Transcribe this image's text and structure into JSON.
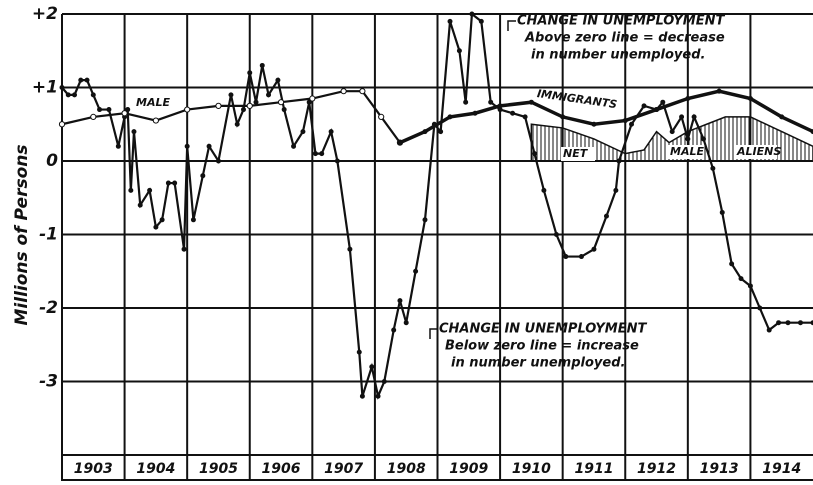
{
  "chart_data": {
    "type": "line",
    "y_label": "Millions of Persons",
    "categories": [
      "1903",
      "1904",
      "1905",
      "1906",
      "1907",
      "1908",
      "1909",
      "1910",
      "1911",
      "1912",
      "1913",
      "1914"
    ],
    "xlim": [
      1903,
      1915
    ],
    "ylim": [
      -4,
      2
    ],
    "yticks": [
      {
        "value": 2,
        "label": "+2"
      },
      {
        "value": 1,
        "label": "+1"
      },
      0,
      -1,
      -2,
      -3
    ],
    "grid": true,
    "series": [
      {
        "color": "#111111",
        "style": "dots",
        "x": [
          1903.0,
          1903.1,
          1903.2,
          1903.3,
          1903.4,
          1903.5,
          1903.6,
          1903.75,
          1903.9,
          1904.0,
          1904.05,
          1904.1,
          1904.15,
          1904.25,
          1904.4,
          1904.5,
          1904.6,
          1904.7,
          1904.8,
          1904.95,
          1905.0,
          1905.1,
          1905.25,
          1905.35,
          1905.5,
          1905.7,
          1905.8,
          1905.9,
          1906.0,
          1906.1,
          1906.2,
          1906.3,
          1906.45,
          1906.55,
          1906.7,
          1906.85,
          1906.95,
          1907.05,
          1907.15,
          1907.3,
          1907.4,
          1907.6,
          1907.75,
          1907.8,
          1907.95,
          1908.05,
          1908.15,
          1908.3,
          1908.4,
          1908.5,
          1908.65,
          1908.8,
          1908.95,
          1909.05,
          1909.2,
          1909.35,
          1909.45,
          1909.55,
          1909.7,
          1909.85,
          1910.0,
          1910.2,
          1910.4,
          1910.55,
          1910.7,
          1910.9,
          1911.05,
          1911.3,
          1911.5,
          1911.7,
          1911.85,
          1911.9,
          1912.1,
          1912.3,
          1912.5,
          1912.6,
          1912.75,
          1912.9,
          1913.0,
          1913.1,
          1913.25,
          1913.4,
          1913.55,
          1913.7,
          1913.85,
          1914.0,
          1914.15,
          1914.3,
          1914.45,
          1914.6,
          1914.8,
          1915.0
        ],
        "values": [
          1.0,
          0.9,
          0.9,
          1.1,
          1.1,
          0.9,
          0.7,
          0.7,
          0.2,
          0.6,
          0.7,
          -0.4,
          0.4,
          -0.6,
          -0.4,
          -0.9,
          -0.8,
          -0.3,
          -0.3,
          -1.2,
          0.2,
          -0.8,
          -0.2,
          0.2,
          0.0,
          0.9,
          0.5,
          0.7,
          1.2,
          0.8,
          1.3,
          0.9,
          1.1,
          0.7,
          0.2,
          0.4,
          0.8,
          0.1,
          0.1,
          0.4,
          0.0,
          -1.2,
          -2.6,
          -3.2,
          -2.8,
          -3.2,
          -3.0,
          -2.3,
          -1.9,
          -2.2,
          -1.5,
          -0.8,
          0.5,
          0.4,
          1.9,
          1.5,
          0.8,
          2.0,
          1.9,
          0.8,
          0.7,
          0.65,
          0.6,
          0.1,
          -0.4,
          -1.0,
          -1.3,
          -1.3,
          -1.2,
          -0.75,
          -0.4,
          0.0,
          0.5,
          0.75,
          0.7,
          0.8,
          0.4,
          0.6,
          0.3,
          0.6,
          0.3,
          -0.1,
          -0.7,
          -1.4,
          -1.6,
          -1.7,
          -2.0,
          -2.3,
          -2.2,
          -2.2,
          -2.2,
          -2.2
        ]
      },
      {
        "name": "MALE",
        "color": "#111111",
        "style": "open",
        "x": [
          1903.0,
          1903.5,
          1904.0,
          1904.5,
          1905.0,
          1905.5,
          1906.0,
          1906.5,
          1907.0,
          1907.5,
          1907.8,
          1908.1,
          1908.4
        ],
        "values": [
          0.5,
          0.6,
          0.65,
          0.55,
          0.7,
          0.75,
          0.75,
          0.8,
          0.85,
          0.95,
          0.95,
          0.6,
          0.25
        ]
      },
      {
        "name": "IMMIGRANTS",
        "color": "#111111",
        "style": "thick",
        "x": [
          1908.4,
          1908.8,
          1909.2,
          1909.6,
          1910.0,
          1910.5,
          1911.0,
          1911.5,
          1912.0,
          1912.5,
          1913.0,
          1913.5,
          1914.0,
          1914.5,
          1915.0
        ],
        "values": [
          0.25,
          0.4,
          0.6,
          0.65,
          0.75,
          0.8,
          0.6,
          0.5,
          0.55,
          0.7,
          0.85,
          0.95,
          0.85,
          0.6,
          0.4
        ]
      },
      {
        "labels": [
          "NET",
          "MALE",
          "ALIENS"
        ],
        "color": "#111111",
        "style": "hatch",
        "x": [
          1910.5,
          1911.0,
          1911.5,
          1912.0,
          1912.3,
          1912.5,
          1912.7,
          1913.0,
          1913.3,
          1913.6,
          1914.0,
          1914.5,
          1915.0
        ],
        "values": [
          0.5,
          0.45,
          0.3,
          0.1,
          0.15,
          0.4,
          0.25,
          0.4,
          0.5,
          0.6,
          0.6,
          0.4,
          0.2
        ]
      }
    ],
    "annotations": [
      {
        "lines": [
          "CHANGE IN UNEMPLOYMENT",
          "Above zero line = decrease",
          "in number unemployed."
        ]
      },
      {
        "lines": [
          "CHANGE IN UNEMPLOYMENT",
          "Below zero line = increase",
          "in number unemployed."
        ]
      }
    ]
  }
}
